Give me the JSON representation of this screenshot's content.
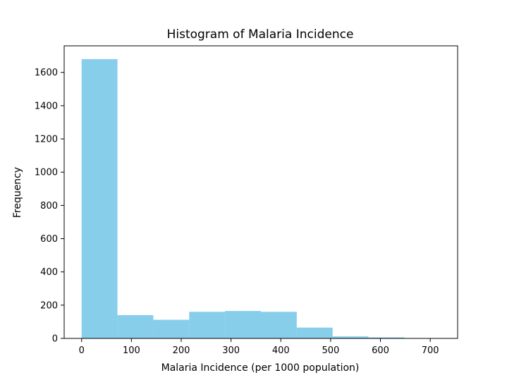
{
  "chart_data": {
    "type": "histogram",
    "title": "Histogram of Malaria Incidence",
    "xlabel": "Malaria Incidence (per 1000 population)",
    "ylabel": "Frequency",
    "xlim": [
      -35,
      755
    ],
    "ylim": [
      0,
      1760
    ],
    "xticks": [
      0,
      100,
      200,
      300,
      400,
      500,
      600,
      700
    ],
    "yticks": [
      0,
      200,
      400,
      600,
      800,
      1000,
      1200,
      1400,
      1600
    ],
    "bin_edges": [
      0,
      72,
      144,
      216,
      288,
      360,
      432,
      504,
      576,
      648,
      720
    ],
    "counts": [
      1680,
      140,
      112,
      160,
      165,
      160,
      65,
      12,
      6,
      2
    ],
    "bar_color": "#87ceeb",
    "grid": false,
    "legend": "none"
  }
}
